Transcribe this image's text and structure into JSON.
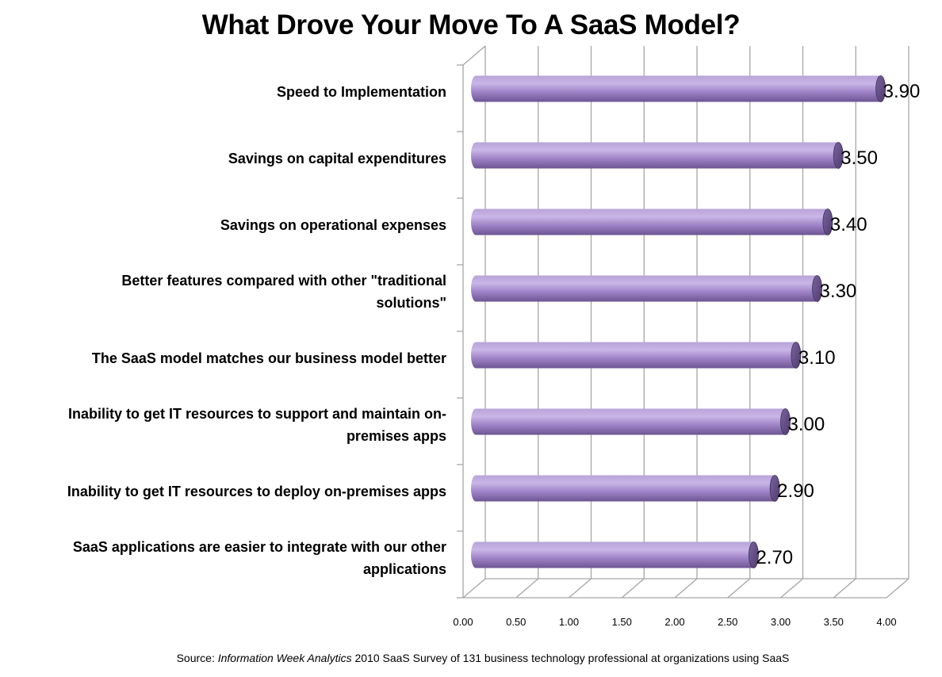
{
  "chart_data": {
    "type": "bar",
    "orientation": "horizontal",
    "title": "What Drove Your Move To A SaaS Model?",
    "categories": [
      "Speed to Implementation",
      "Savings on capital expenditures",
      "Savings on operational expenses",
      "Better features compared with other \"traditional solutions\"",
      "The SaaS model matches our business model better",
      "Inability to get IT resources to support and maintain on-premises apps",
      "Inability to get IT resources to deploy on-premises apps",
      "SaaS applications are easier to integrate with our other applications"
    ],
    "category_lines": [
      [
        "Speed to Implementation"
      ],
      [
        "Savings on capital expenditures"
      ],
      [
        "Savings on operational expenses"
      ],
      [
        "Better features compared with other \"traditional",
        "solutions\""
      ],
      [
        "The SaaS model matches our business model better"
      ],
      [
        "Inability to get IT resources to support and maintain on-",
        "premises apps"
      ],
      [
        "Inability to get IT resources to deploy on-premises apps"
      ],
      [
        "SaaS applications are easier to integrate with our other",
        "applications"
      ]
    ],
    "values": [
      3.9,
      3.5,
      3.4,
      3.3,
      3.1,
      3.0,
      2.9,
      2.7
    ],
    "value_labels": [
      "3.90",
      "3.50",
      "3.40",
      "3.30",
      "3.10",
      "3.00",
      "2.90",
      "2.70"
    ],
    "xlim": [
      0,
      4
    ],
    "x_ticks": [
      "0.00",
      "0.50",
      "1.00",
      "1.50",
      "2.00",
      "2.50",
      "3.00",
      "3.50",
      "4.00"
    ],
    "xlabel": "",
    "ylabel": "",
    "grid": true,
    "colors": {
      "bar": "#9b7fc4",
      "bar_light": "#c7b3e3",
      "bar_dark": "#5f4a82",
      "grid": "#a6a6a6"
    }
  },
  "source": {
    "prefix": "Source: ",
    "publication": "Information Week Analytics",
    "suffix": " 2010 SaaS Survey of 131 business technology professional at organizations using SaaS"
  }
}
